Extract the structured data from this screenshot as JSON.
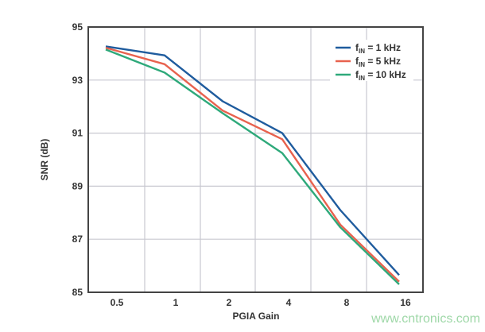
{
  "chart_data": {
    "type": "line",
    "title": "",
    "xlabel": "PGIA Gain",
    "ylabel": "SNR (dB)",
    "categories": [
      "0.5",
      "1",
      "2",
      "4",
      "8",
      "16"
    ],
    "ylim": [
      85,
      95
    ],
    "yticks": [
      "85",
      "87",
      "89",
      "91",
      "93",
      "95"
    ],
    "grid": true,
    "legend_position": "top-right",
    "series": [
      {
        "name_main": "f",
        "name_sub": "IN",
        "name_rest": " = 1 kHz",
        "color": "#1f5c9e",
        "values": [
          94.27,
          93.93,
          92.2,
          91.0,
          88.1,
          85.65
        ]
      },
      {
        "name_main": "f",
        "name_sub": "IN",
        "name_rest": " = 5 kHz",
        "color": "#e8624e",
        "values": [
          94.22,
          93.6,
          91.85,
          90.77,
          87.55,
          85.4
        ]
      },
      {
        "name_main": "f",
        "name_sub": "IN",
        "name_rest": " = 10 kHz",
        "color": "#2ea97a",
        "values": [
          94.15,
          93.28,
          91.75,
          90.25,
          87.45,
          85.3
        ]
      }
    ]
  },
  "watermark": "www.cntronics.com"
}
